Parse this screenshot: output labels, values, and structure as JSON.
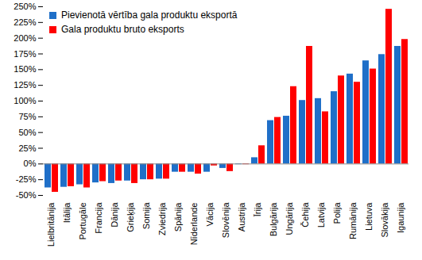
{
  "chart_data": {
    "type": "bar",
    "categories": [
      "Lielbritānija",
      "Itālija",
      "Portugāle",
      "Francija",
      "Dānija",
      "Grieķija",
      "Somija",
      "Zviedrija",
      "Spānija",
      "Nīderlande",
      "Vācija",
      "Slovēnija",
      "Austrija",
      "Īrija",
      "Bulgārija",
      "Ungārija",
      "Čehija",
      "Latvija",
      "Polija",
      "Rumānija",
      "Lietuva",
      "Slovākija",
      "Igaunija"
    ],
    "series": [
      {
        "name": "Pievienotā vērtība gala produktu eksportā",
        "color": "#1f6fc8",
        "values": [
          -38,
          -37,
          -33,
          -30,
          -31,
          -27,
          -25,
          -24,
          -13,
          -13,
          -13,
          -7,
          -1,
          10,
          69,
          76,
          101,
          104,
          115,
          143,
          164,
          174,
          187
        ]
      },
      {
        "name": "Gala produktu bruto eksports",
        "color": "#ff0000",
        "values": [
          -45,
          -36,
          -38,
          -28,
          -27,
          -31,
          -25,
          -24,
          -13,
          -16,
          -3,
          -12,
          -1,
          29,
          74,
          123,
          187,
          83,
          140,
          130,
          151,
          246,
          198
        ]
      }
    ],
    "ylim": [
      -50,
      250
    ],
    "yticks": [
      {
        "value": -50,
        "label": "-50%"
      },
      {
        "value": -25,
        "label": "-25%"
      },
      {
        "value": 0,
        "label": "0%"
      },
      {
        "value": 25,
        "label": "25%"
      },
      {
        "value": 50,
        "label": "50%"
      },
      {
        "value": 75,
        "label": "75%"
      },
      {
        "value": 100,
        "label": "100%"
      },
      {
        "value": 125,
        "label": "125%"
      },
      {
        "value": 150,
        "label": "150%"
      },
      {
        "value": 175,
        "label": "175%"
      },
      {
        "value": 200,
        "label": "200%"
      },
      {
        "value": 225,
        "label": "225%"
      },
      {
        "value": 250,
        "label": "250%"
      }
    ],
    "grid": false,
    "legend": "top-left"
  }
}
